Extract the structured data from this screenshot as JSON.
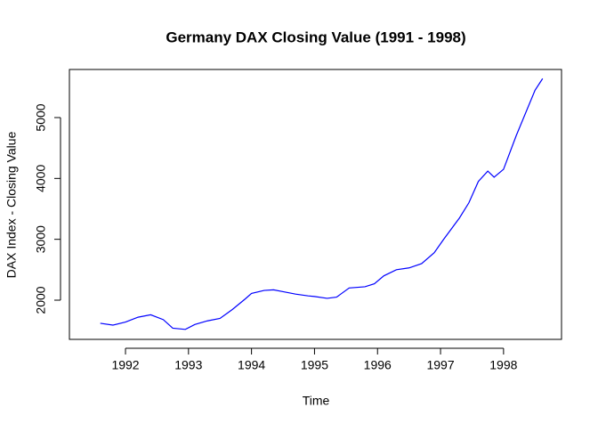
{
  "chart_data": {
    "type": "line",
    "title": "Germany DAX Closing Value (1991 - 1998)",
    "x_label": "Time",
    "y_label": "DAX Index - Closing Value",
    "x": [
      1991.6,
      1991.8,
      1992.0,
      1992.2,
      1992.4,
      1992.6,
      1992.75,
      1992.95,
      1993.1,
      1993.3,
      1993.5,
      1993.7,
      1993.9,
      1994.0,
      1994.2,
      1994.35,
      1994.5,
      1994.7,
      1994.9,
      1995.0,
      1995.2,
      1995.35,
      1995.55,
      1995.8,
      1995.95,
      1996.1,
      1996.3,
      1996.5,
      1996.7,
      1996.9,
      1997.05,
      1997.3,
      1997.45,
      1997.6,
      1997.75,
      1997.85,
      1998.0,
      1998.2,
      1998.5,
      1998.62
    ],
    "series": [
      {
        "name": "DAX",
        "color": "#0000ff",
        "values": [
          1620,
          1590,
          1640,
          1720,
          1760,
          1680,
          1540,
          1520,
          1600,
          1660,
          1700,
          1850,
          2020,
          2110,
          2160,
          2170,
          2140,
          2100,
          2070,
          2060,
          2030,
          2050,
          2200,
          2220,
          2270,
          2400,
          2500,
          2530,
          2600,
          2780,
          3000,
          3350,
          3600,
          3950,
          4120,
          4020,
          4150,
          4700,
          5450,
          5640
        ]
      }
    ],
    "xlim": [
      1991.11,
      1998.92
    ],
    "ylim": [
      1356,
      5790
    ],
    "xticks": [
      1992,
      1993,
      1994,
      1995,
      1996,
      1997,
      1998
    ],
    "yticks": [
      2000,
      3000,
      4000,
      5000
    ]
  }
}
